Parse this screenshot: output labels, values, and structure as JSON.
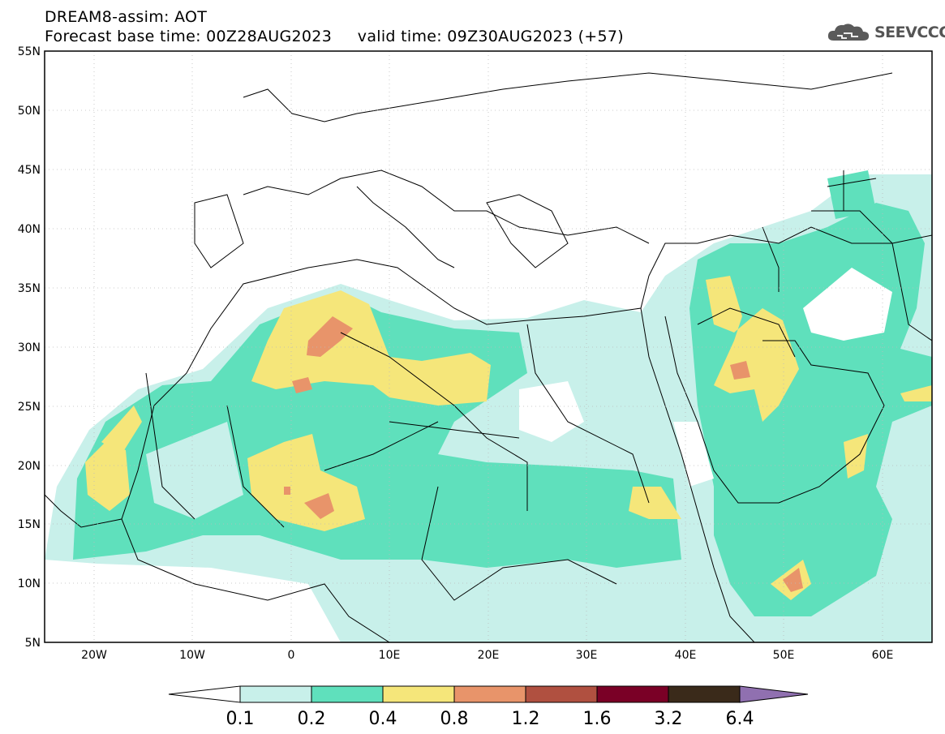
{
  "header": {
    "line1": "DREAM8-assim: AOT",
    "line2": "Forecast base time: 00Z28AUG2023     valid time: 09Z30AUG2023 (+57)"
  },
  "logo": {
    "text": "SEEVCCC",
    "icon": "cloud-logo-icon"
  },
  "map": {
    "lon_range": [
      -25,
      65
    ],
    "lat_range": [
      5,
      55
    ],
    "lat_ticks": [
      "55N",
      "50N",
      "45N",
      "40N",
      "35N",
      "30N",
      "25N",
      "20N",
      "15N",
      "10N",
      "5N"
    ],
    "lon_ticks": [
      "20W",
      "10W",
      "0",
      "10E",
      "20E",
      "30E",
      "40E",
      "50E",
      "60E"
    ],
    "grid": "dotted"
  },
  "colorbar": {
    "labels": [
      "0.1",
      "0.2",
      "0.4",
      "0.8",
      "1.2",
      "1.6",
      "3.2",
      "6.4"
    ],
    "colors": [
      "#ffffff",
      "#c8f0ea",
      "#5fe0bc",
      "#f5e67a",
      "#e8946a",
      "#b05040",
      "#7a0026",
      "#3a2a1a",
      "#9070b0"
    ]
  }
}
